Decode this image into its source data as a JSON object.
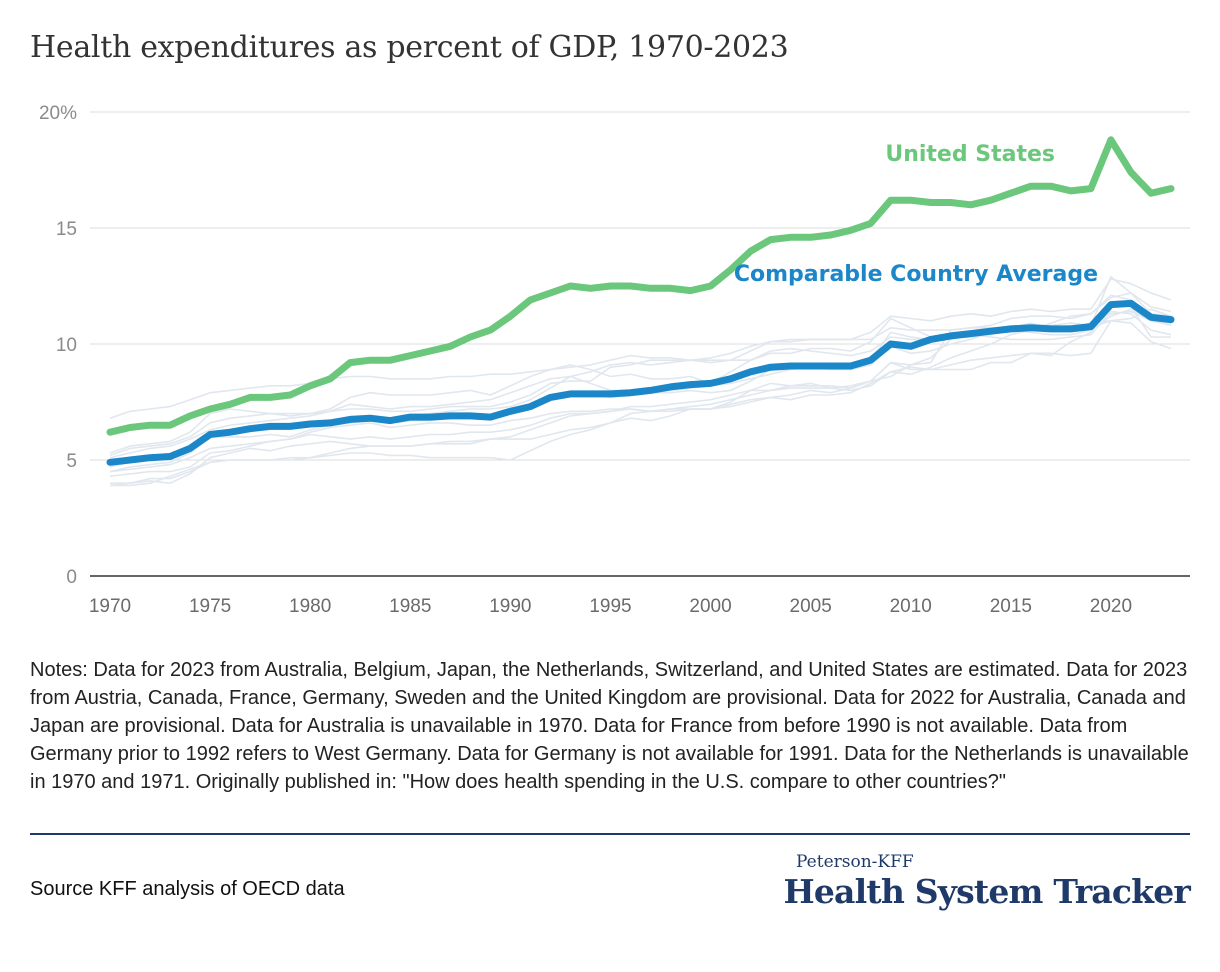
{
  "title": "Health expenditures as percent of GDP, 1970-2023",
  "notes": "Notes: Data for 2023 from Australia, Belgium, Japan, the Netherlands, Switzerland, and United States are estimated. Data for 2023 from Austria, Canada, France, Germany, Sweden and the United Kingdom are provisional. Data for 2022 for Australia, Canada and Japan are provisional. Data for Australia is unavailable in 1970. Data for France from before 1990 is not available.  Data from Germany prior to 1992 refers to West Germany. Data for Germany is not available for 1991. Data for the Netherlands is unavailable in 1970 and 1971. Originally published in: \"How does health spending in the U.S. compare to other countries?\"",
  "source": "Source KFF analysis of OECD data",
  "logo": {
    "top": "Peterson-KFF",
    "main": "Health System Tracker"
  },
  "colors": {
    "us": "#6bc77b",
    "avg": "#1b87c9",
    "background_lines": "#e1e7ee",
    "grid": "#dcdcdc",
    "axis": "#333333"
  },
  "chart_data": {
    "type": "line",
    "title": "Health expenditures as percent of GDP, 1970-2023",
    "xlabel": "",
    "ylabel": "",
    "xlim": [
      1970,
      2023
    ],
    "ylim": [
      0,
      20
    ],
    "x_ticks": [
      1970,
      1975,
      1980,
      1985,
      1990,
      1995,
      2000,
      2005,
      2010,
      2015,
      2020
    ],
    "x_tick_labels": [
      "1970",
      "1975",
      "1980",
      "1985",
      "1990",
      "1995",
      "2000",
      "2005",
      "2010",
      "2015",
      "2020"
    ],
    "y_ticks": [
      0,
      5,
      10,
      15,
      20
    ],
    "y_tick_labels": [
      "0",
      "5",
      "10",
      "15",
      "20%"
    ],
    "grid": true,
    "x": [
      1970,
      1971,
      1972,
      1973,
      1974,
      1975,
      1976,
      1977,
      1978,
      1979,
      1980,
      1981,
      1982,
      1983,
      1984,
      1985,
      1986,
      1987,
      1988,
      1989,
      1990,
      1991,
      1992,
      1993,
      1994,
      1995,
      1996,
      1997,
      1998,
      1999,
      2000,
      2001,
      2002,
      2003,
      2004,
      2005,
      2006,
      2007,
      2008,
      2009,
      2010,
      2011,
      2012,
      2013,
      2014,
      2015,
      2016,
      2017,
      2018,
      2019,
      2020,
      2021,
      2022,
      2023
    ],
    "series": [
      {
        "name": "United States",
        "values": [
          6.2,
          6.4,
          6.5,
          6.5,
          6.9,
          7.2,
          7.4,
          7.7,
          7.7,
          7.8,
          8.2,
          8.5,
          9.2,
          9.3,
          9.3,
          9.5,
          9.7,
          9.9,
          10.3,
          10.6,
          11.2,
          11.9,
          12.2,
          12.5,
          12.4,
          12.5,
          12.5,
          12.4,
          12.4,
          12.3,
          12.5,
          13.2,
          14.0,
          14.5,
          14.6,
          14.6,
          14.7,
          14.9,
          15.2,
          16.2,
          16.2,
          16.1,
          16.1,
          16.0,
          16.2,
          16.5,
          16.8,
          16.8,
          16.6,
          16.7,
          18.8,
          17.4,
          16.5,
          16.7
        ]
      },
      {
        "name": "Comparable Country Average",
        "values": [
          4.9,
          5.0,
          5.1,
          5.15,
          5.5,
          6.1,
          6.2,
          6.35,
          6.45,
          6.45,
          6.55,
          6.6,
          6.75,
          6.8,
          6.7,
          6.85,
          6.85,
          6.9,
          6.9,
          6.85,
          7.1,
          7.3,
          7.7,
          7.85,
          7.85,
          7.85,
          7.9,
          8.0,
          8.15,
          8.25,
          8.3,
          8.5,
          8.8,
          9.0,
          9.05,
          9.05,
          9.05,
          9.05,
          9.3,
          10.0,
          9.9,
          10.2,
          10.35,
          10.45,
          10.55,
          10.65,
          10.7,
          10.65,
          10.65,
          10.75,
          11.7,
          11.75,
          11.15,
          11.05
        ]
      }
    ],
    "background_series": [
      [
        4.7,
        4.9,
        5.0,
        5.1,
        5.4,
        6.0,
        6.2,
        6.3,
        6.4,
        6.4,
        6.5,
        6.6,
        6.8,
        6.9,
        6.8,
        6.9,
        7.0,
        7.1,
        7.2,
        7.2,
        7.3,
        7.6,
        8.1,
        8.6,
        8.8,
        9.1,
        9.2,
        9.1,
        9.2,
        9.3,
        9.4,
        9.6,
        9.9,
        10.1,
        10.2,
        10.2,
        10.2,
        10.2,
        10.5,
        11.2,
        11.1,
        11.0,
        11.2,
        11.3,
        11.2,
        11.4,
        11.5,
        11.4,
        11.5,
        11.5,
        12.8,
        12.6,
        12.2,
        11.9
      ],
      [
        5.2,
        5.5,
        5.6,
        5.7,
        6.0,
        6.6,
        6.8,
        6.9,
        7.0,
        6.9,
        7.0,
        7.2,
        7.7,
        7.9,
        7.8,
        7.8,
        7.8,
        7.9,
        8.0,
        7.8,
        8.2,
        8.6,
        8.9,
        9.1,
        8.9,
        8.6,
        8.7,
        8.5,
        8.5,
        8.6,
        8.3,
        8.8,
        9.3,
        9.6,
        9.6,
        9.8,
        9.8,
        9.7,
        10.1,
        11.1,
        10.7,
        10.3,
        10.3,
        10.3,
        10.4,
        10.7,
        10.9,
        10.7,
        10.8,
        10.8,
        12.9,
        12.2,
        11.3,
        11.2
      ],
      [
        4.5,
        4.7,
        4.8,
        4.9,
        5.3,
        6.0,
        6.0,
        6.0,
        6.1,
        6.0,
        6.3,
        6.5,
        6.6,
        6.7,
        6.6,
        6.7,
        6.7,
        6.8,
        6.9,
        6.9,
        7.1,
        7.3,
        7.6,
        7.8,
        7.8,
        7.7,
        7.8,
        7.9,
        8.0,
        8.1,
        8.2,
        8.3,
        8.5,
        8.7,
        8.9,
        9.0,
        8.9,
        8.9,
        9.1,
        9.9,
        9.6,
        9.7,
        10.0,
        10.2,
        10.5,
        10.6,
        10.5,
        10.4,
        10.4,
        10.6,
        11.2,
        11.5,
        11.0,
        10.9
      ],
      [
        4.3,
        4.4,
        4.5,
        4.5,
        4.7,
        5.3,
        5.4,
        5.6,
        5.8,
        5.9,
        6.2,
        6.4,
        6.5,
        6.6,
        6.4,
        6.5,
        6.6,
        6.6,
        6.5,
        6.5,
        6.7,
        6.8,
        7.0,
        7.1,
        7.1,
        7.2,
        7.2,
        7.1,
        7.2,
        7.3,
        7.4,
        7.6,
        7.8,
        8.0,
        8.2,
        8.2,
        8.2,
        8.1,
        8.4,
        9.2,
        9.1,
        9.2,
        10.6,
        10.7,
        10.7,
        10.7,
        10.8,
        10.8,
        10.7,
        10.7,
        11.0,
        11.1,
        11.5,
        11.2
      ],
      [
        5.3,
        5.6,
        5.7,
        5.8,
        6.2,
        7.0,
        7.2,
        7.1,
        7.0,
        7.0,
        7.0,
        7.1,
        7.4,
        7.3,
        7.2,
        7.3,
        7.3,
        7.4,
        7.5,
        7.6,
        7.9,
        8.2,
        8.5,
        8.6,
        8.3,
        8.0,
        8.0,
        7.9,
        7.9,
        8.0,
        7.9,
        8.0,
        8.4,
        8.9,
        8.9,
        9.1,
        8.9,
        8.9,
        9.3,
        10.5,
        10.3,
        10.2,
        10.4,
        10.4,
        10.3,
        10.2,
        10.2,
        10.2,
        10.3,
        10.4,
        11.4,
        11.3,
        10.6,
        10.4
      ],
      [
        3.9,
        4.0,
        4.1,
        4.0,
        4.4,
        5.1,
        5.3,
        5.5,
        5.4,
        5.6,
        5.7,
        5.8,
        5.7,
        5.6,
        5.6,
        5.6,
        5.7,
        5.8,
        5.8,
        5.9,
        6.0,
        6.3,
        6.6,
        6.9,
        7.0,
        7.1,
        7.2,
        7.1,
        7.1,
        7.2,
        7.2,
        7.3,
        7.5,
        7.7,
        7.6,
        7.8,
        7.8,
        7.9,
        8.3,
        8.8,
        8.7,
        9.0,
        9.4,
        9.7,
        10.0,
        10.4,
        10.6,
        10.9,
        11.2,
        11.3,
        12.0,
        12.2,
        11.6,
        11.4
      ],
      [
        4.5,
        4.6,
        4.7,
        4.8,
        5.1,
        5.5,
        5.6,
        5.7,
        5.8,
        5.9,
        6.1,
        6.0,
        5.9,
        6.0,
        5.9,
        6.0,
        6.1,
        6.1,
        6.2,
        6.2,
        6.3,
        6.5,
        6.8,
        7.0,
        7.0,
        7.1,
        7.3,
        7.3,
        7.4,
        7.5,
        7.6,
        7.8,
        8.0,
        8.0,
        8.1,
        8.1,
        8.1,
        8.2,
        8.4,
        9.2,
        8.9,
        8.9,
        8.9,
        8.9,
        9.2,
        9.2,
        9.6,
        9.6,
        9.5,
        9.6,
        11.0,
        10.9,
        10.1,
        9.8
      ],
      [
        4.0,
        4.0,
        4.2,
        4.2,
        4.5,
        4.9,
        5.0,
        5.0,
        5.0,
        5.1,
        5.1,
        5.3,
        5.5,
        5.6,
        5.6,
        5.6,
        5.7,
        5.7,
        5.7,
        5.9,
        5.9,
        5.9,
        6.1,
        6.3,
        6.4,
        6.6,
        6.8,
        6.7,
        6.9,
        7.2,
        7.2,
        7.4,
        7.6,
        7.7,
        7.8,
        8.0,
        7.9,
        8.1,
        8.4,
        8.6,
        9.1,
        9.4,
        10.2,
        10.4,
        10.6,
        10.7,
        10.7,
        10.7,
        10.7,
        10.9,
        11.0,
        11.1,
        11.5,
        11.2
      ],
      [
        5.1,
        5.3,
        5.5,
        5.6,
        5.9,
        6.3,
        6.5,
        6.6,
        6.7,
        6.8,
        6.9,
        7.1,
        7.2,
        7.2,
        7.1,
        7.1,
        7.2,
        7.3,
        7.3,
        7.3,
        7.5,
        7.8,
        8.3,
        8.4,
        8.4,
        9.0,
        9.1,
        9.3,
        9.3,
        9.3,
        9.2,
        9.3,
        9.7,
        10.1,
        10.1,
        10.2,
        10.2,
        10.2,
        10.2,
        10.7,
        10.6,
        10.6,
        10.6,
        10.7,
        10.8,
        11.1,
        11.2,
        11.2,
        11.1,
        11.3,
        12.1,
        11.9,
        11.0,
        11.1
      ],
      [
        6.8,
        7.1,
        7.2,
        7.3,
        7.6,
        7.9,
        8.0,
        8.1,
        8.2,
        8.2,
        8.3,
        8.5,
        8.6,
        8.6,
        8.5,
        8.5,
        8.5,
        8.6,
        8.6,
        8.7,
        8.7,
        8.8,
        8.9,
        9.0,
        9.1,
        9.3,
        9.5,
        9.4,
        9.4,
        9.3,
        9.3,
        9.3,
        9.3,
        9.7,
        9.8,
        9.7,
        9.6,
        9.5,
        9.7,
        10.3,
        10.2,
        10.2,
        10.4,
        10.4,
        10.6,
        10.7,
        10.8,
        10.8,
        10.9,
        10.8,
        11.3,
        11.4,
        11.0,
        10.8
      ],
      [
        3.9,
        3.9,
        4.0,
        4.3,
        4.6,
        4.9,
        5.0,
        5.0,
        5.0,
        5.0,
        5.1,
        5.2,
        5.3,
        5.3,
        5.2,
        5.2,
        5.1,
        5.1,
        5.1,
        5.1,
        5.0,
        5.4,
        5.8,
        6.1,
        6.3,
        6.6,
        7.0,
        7.1,
        7.2,
        7.2,
        7.2,
        7.5,
        8.0,
        8.3,
        8.2,
        8.3,
        8.1,
        8.0,
        8.2,
        8.8,
        9.0,
        8.9,
        9.1,
        9.3,
        9.4,
        9.5,
        9.6,
        9.5,
        10.1,
        10.5,
        11.8,
        11.6,
        10.3,
        10.3
      ]
    ]
  }
}
